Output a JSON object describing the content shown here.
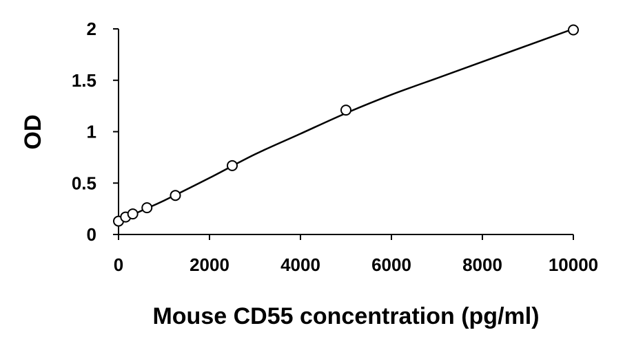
{
  "chart_data": {
    "type": "scatter",
    "title": "",
    "xlabel": "Mouse CD55 concentration (pg/ml)",
    "ylabel": "OD",
    "xlim": [
      0,
      10000
    ],
    "ylim": [
      0,
      2
    ],
    "xticks": [
      "0",
      "2000",
      "4000",
      "6000",
      "8000",
      "10000"
    ],
    "yticks": [
      "0",
      "0.5",
      "1",
      "1.5",
      "2"
    ],
    "grid": false,
    "legend": "none",
    "series": [
      {
        "marker": "open-circle",
        "x": [
          0,
          156,
          313,
          625,
          1250,
          2500,
          5000,
          10000
        ],
        "y": [
          0.13,
          0.17,
          0.2,
          0.26,
          0.38,
          0.67,
          1.21,
          1.99
        ]
      }
    ],
    "fit": {
      "type": "smooth-curve",
      "x": [
        0,
        500,
        1000,
        2000,
        3000,
        4000,
        5000,
        6000,
        7000,
        8000,
        9000,
        10000
      ],
      "y": [
        0.13,
        0.23,
        0.33,
        0.55,
        0.78,
        0.98,
        1.18,
        1.36,
        1.52,
        1.68,
        1.84,
        2.0
      ]
    },
    "colors": {
      "axis": "#000000",
      "line": "#000000",
      "marker_fill": "#ffffff"
    }
  }
}
